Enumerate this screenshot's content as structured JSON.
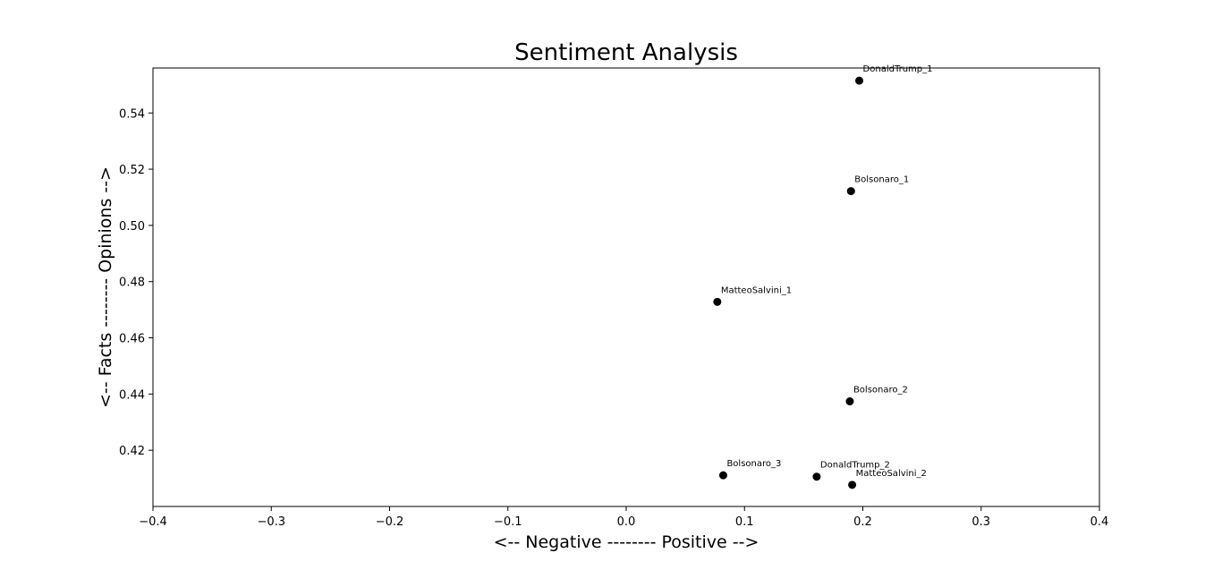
{
  "chart_data": {
    "type": "scatter",
    "title": "Sentiment Analysis",
    "xlabel": "<-- Negative -------- Positive -->",
    "ylabel": "<-- Facts -------- Opinions -->",
    "xlim": [
      -0.4,
      0.4
    ],
    "ylim": [
      0.4,
      0.556
    ],
    "xticks": [
      -0.4,
      -0.3,
      -0.2,
      -0.1,
      0.0,
      0.1,
      0.2,
      0.3,
      0.4
    ],
    "xtick_labels": [
      "−0.4",
      "−0.3",
      "−0.2",
      "−0.1",
      "0.0",
      "0.1",
      "0.2",
      "0.3",
      "0.4"
    ],
    "yticks": [
      0.42,
      0.44,
      0.46,
      0.48,
      0.5,
      0.52,
      0.54
    ],
    "ytick_labels": [
      "0.42",
      "0.44",
      "0.46",
      "0.48",
      "0.50",
      "0.52",
      "0.54"
    ],
    "grid": false,
    "marker_color": "#000000",
    "points": [
      {
        "label": "DonaldTrump_1",
        "x": 0.197,
        "y": 0.5515
      },
      {
        "label": "Bolsonaro_1",
        "x": 0.19,
        "y": 0.5122
      },
      {
        "label": "MatteoSalvini_1",
        "x": 0.077,
        "y": 0.4728
      },
      {
        "label": "Bolsonaro_2",
        "x": 0.189,
        "y": 0.4374
      },
      {
        "label": "Bolsonaro_3",
        "x": 0.082,
        "y": 0.4111
      },
      {
        "label": "DonaldTrump_2",
        "x": 0.161,
        "y": 0.4106
      },
      {
        "label": "MatteoSalvini_2",
        "x": 0.191,
        "y": 0.4077
      }
    ]
  }
}
